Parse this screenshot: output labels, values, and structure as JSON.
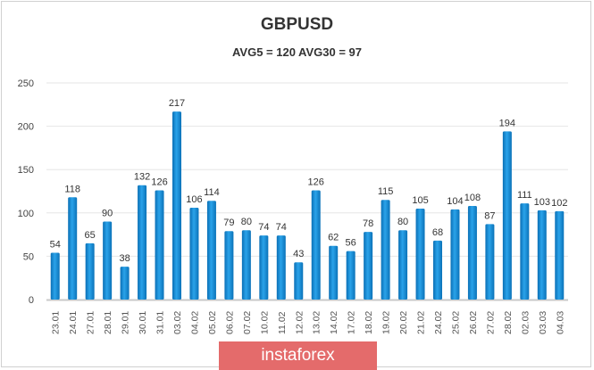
{
  "chart_data": {
    "type": "bar",
    "title": "GBPUSD",
    "subtitle": "AVG5 = 120 AVG30 = 97",
    "xlabel": "",
    "ylabel": "",
    "ylim": [
      0,
      250
    ],
    "yticks": [
      "0",
      "50",
      "100",
      "150",
      "200",
      "250"
    ],
    "grid": true,
    "categories": [
      "23.01",
      "24.01",
      "27.01",
      "28.01",
      "29.01",
      "30.01",
      "31.01",
      "03.02",
      "04.02",
      "05.02",
      "06.02",
      "07.02",
      "10.02",
      "11.02",
      "12.02",
      "13.02",
      "14.02",
      "17.02",
      "18.02",
      "19.02",
      "20.02",
      "21.02",
      "24.02",
      "25.02",
      "26.02",
      "27.02",
      "28.02",
      "02.03",
      "03.03",
      "04.03"
    ],
    "values": [
      54,
      118,
      65,
      90,
      38,
      132,
      126,
      217,
      106,
      114,
      79,
      80,
      74,
      74,
      43,
      126,
      62,
      56,
      78,
      115,
      80,
      105,
      68,
      104,
      108,
      87,
      194,
      111,
      103,
      102
    ],
    "bar_color": "#1a8fd6"
  },
  "watermark": "instaforex",
  "colors": {
    "brand": "#e46b6b"
  }
}
